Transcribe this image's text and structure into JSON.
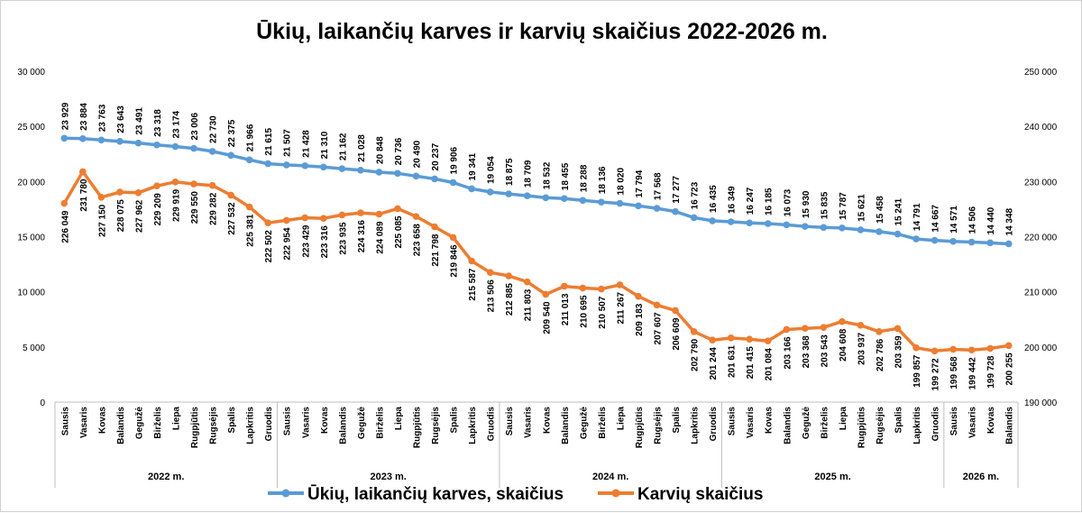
{
  "chart_data": {
    "type": "line",
    "title": "Ūkių, laikančių karves ir karvių skaičius 2022-2026 m.",
    "categories": [
      "Sausis",
      "Vasaris",
      "Kovas",
      "Balandis",
      "Gegužė",
      "Birželis",
      "Liepa",
      "Rugpjūtis",
      "Rugsėjis",
      "Spalis",
      "Lapkritis",
      "Gruodis",
      "Sausis",
      "Vasaris",
      "Kovas",
      "Balandis",
      "Gegužė",
      "Birželis",
      "Liepa",
      "Rugpjūtis",
      "Rugsėjis",
      "Spalis",
      "Lapkritis",
      "Gruodis",
      "Sausis",
      "Vasaris",
      "Kovas",
      "Balandis",
      "Gegužė",
      "Birželis",
      "Liepa",
      "Rugpjūtis",
      "Rugsėjis",
      "Spalis",
      "Lapkritis",
      "Gruodis",
      "Sausis",
      "Vasaris",
      "Kovas",
      "Balandis",
      "Gegužė",
      "Birželis",
      "Liepa",
      "Rugpjūtis",
      "Rugsėjis",
      "Spalis",
      "Lapkritis",
      "Gruodis",
      "Sausis",
      "Vasaris",
      "Kovas",
      "Balandis"
    ],
    "years": [
      {
        "label": "2022 m.",
        "start": 0,
        "end": 11
      },
      {
        "label": "2023 m.",
        "start": 12,
        "end": 23
      },
      {
        "label": "2024 m.",
        "start": 24,
        "end": 35
      },
      {
        "label": "2025 m.",
        "start": 36,
        "end": 47
      },
      {
        "label": "2026 m.",
        "start": 48,
        "end": 51
      }
    ],
    "y_left": {
      "min": 0,
      "max": 30000,
      "ticks": [
        0,
        5000,
        10000,
        15000,
        20000,
        25000,
        30000
      ],
      "tick_labels": [
        "0",
        "5 000",
        "10 000",
        "15 000",
        "20 000",
        "25 000",
        "30 000"
      ]
    },
    "y_right": {
      "min": 190000,
      "max": 250000,
      "ticks": [
        190000,
        200000,
        210000,
        220000,
        230000,
        240000,
        250000
      ],
      "tick_labels": [
        "190 000",
        "200 000",
        "210 000",
        "220 000",
        "230 000",
        "240 000",
        "250 000"
      ]
    },
    "grid": false,
    "legend_position": "bottom",
    "series": [
      {
        "name": "Ūkių, laikančių karves, skaičius",
        "axis": "left",
        "color": "#5B9BD5",
        "values": [
          23929,
          23884,
          23763,
          23643,
          23491,
          23318,
          23174,
          23006,
          22730,
          22375,
          21966,
          21615,
          21507,
          21428,
          21310,
          21162,
          21028,
          20848,
          20736,
          20490,
          20237,
          19906,
          19341,
          19054,
          18875,
          18709,
          18532,
          18455,
          18288,
          18136,
          18020,
          17794,
          17568,
          17277,
          16723,
          16435,
          16349,
          16247,
          16185,
          16073,
          15930,
          15835,
          15787,
          15621,
          15458,
          15241,
          14791,
          14667,
          14571,
          14506,
          14440,
          14348
        ],
        "labels": [
          "23 929",
          "23 884",
          "23 763",
          "23 643",
          "23 491",
          "23 318",
          "23 174",
          "23 006",
          "22 730",
          "22 375",
          "21 966",
          "21 615",
          "21 507",
          "21 428",
          "21 310",
          "21 162",
          "21 028",
          "20 848",
          "20 736",
          "20 490",
          "20 237",
          "19 906",
          "19 341",
          "19 054",
          "18 875",
          "18 709",
          "18 532",
          "18 455",
          "18 288",
          "18 136",
          "18 020",
          "17 794",
          "17 568",
          "17 277",
          "16 723",
          "16 435",
          "16 349",
          "16 247",
          "16 185",
          "16 073",
          "15 930",
          "15 835",
          "15 787",
          "15 621",
          "15 458",
          "15 241",
          "14 791",
          "14 667",
          "14 571",
          "14 506",
          "14 440",
          "14 348"
        ]
      },
      {
        "name": "Karvių skaičius",
        "axis": "right",
        "color": "#ED7D31",
        "values": [
          226049,
          231780,
          227150,
          228075,
          227962,
          229209,
          229919,
          229550,
          229282,
          227532,
          225381,
          222502,
          222954,
          223429,
          223316,
          223935,
          224316,
          224089,
          225085,
          223658,
          221798,
          219846,
          215587,
          213506,
          212885,
          211803,
          209540,
          211013,
          210695,
          210507,
          211267,
          209183,
          207607,
          206609,
          202790,
          201244,
          201631,
          201415,
          201084,
          203166,
          203368,
          203543,
          204608,
          203937,
          202786,
          203359,
          199857,
          199272,
          199568,
          199442,
          199728,
          200255
        ],
        "labels": [
          "226 049",
          "231 780",
          "227 150",
          "228 075",
          "227 962",
          "229 209",
          "229 919",
          "229 550",
          "229 282",
          "227 532",
          "225 381",
          "222 502",
          "222 954",
          "223 429",
          "223 316",
          "223 935",
          "224 316",
          "224 089",
          "225 085",
          "223 658",
          "221 798",
          "219 846",
          "215 587",
          "213 506",
          "212 885",
          "211 803",
          "209 540",
          "211 013",
          "210 695",
          "210 507",
          "211 267",
          "209 183",
          "207 607",
          "206 609",
          "202 790",
          "201 244",
          "201 631",
          "201 415",
          "201 084",
          "203 166",
          "203 368",
          "203 543",
          "204 608",
          "203 937",
          "202 786",
          "203 359",
          "199 857",
          "199 272",
          "199 568",
          "199 442",
          "199 728",
          "200 255"
        ]
      }
    ]
  }
}
